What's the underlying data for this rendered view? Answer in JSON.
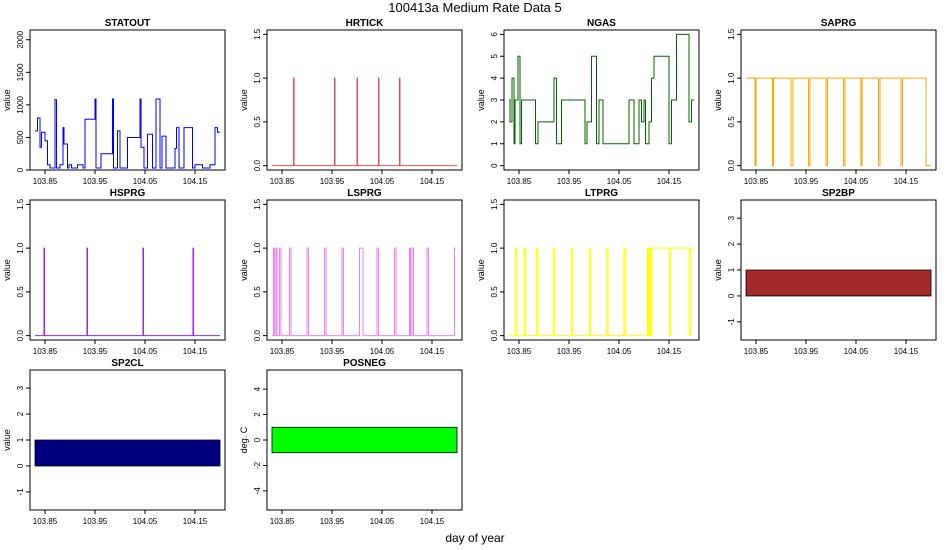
{
  "page": {
    "title": "100413a   Medium Rate Data 5",
    "xlabel": "day of year"
  },
  "chart_data": [
    {
      "type": "line",
      "title": "STATOUT",
      "ylabel": "value",
      "color": "#0000ff",
      "xlim": [
        103.82,
        104.21
      ],
      "ylim": [
        0,
        2150
      ],
      "xticks": [
        103.85,
        103.95,
        104.05,
        104.15
      ],
      "yticks": [
        0,
        500,
        1000,
        1500,
        2000
      ],
      "x": [
        103.83,
        103.835,
        103.835,
        103.84,
        103.84,
        103.843,
        103.843,
        103.85,
        103.85,
        103.855,
        103.855,
        103.86,
        103.86,
        103.87,
        103.87,
        103.873,
        103.873,
        103.88,
        103.88,
        103.886,
        103.886,
        103.888,
        103.888,
        103.895,
        103.895,
        103.898,
        103.898,
        103.903,
        103.903,
        103.915,
        103.915,
        103.926,
        103.926,
        103.93,
        103.93,
        103.95,
        103.95,
        103.952,
        103.952,
        103.962,
        103.962,
        103.985,
        103.985,
        103.987,
        103.987,
        103.995,
        103.995,
        104.0,
        104.0,
        104.015,
        104.015,
        104.04,
        104.04,
        104.042,
        104.042,
        104.048,
        104.048,
        104.055,
        104.055,
        104.065,
        104.065,
        104.072,
        104.072,
        104.08,
        104.08,
        104.084,
        104.084,
        104.092,
        104.092,
        104.11,
        104.11,
        104.113,
        104.113,
        104.118,
        104.118,
        104.128,
        104.128,
        104.145,
        104.145,
        104.15,
        104.15,
        104.165,
        104.165,
        104.18,
        104.18,
        104.19,
        104.19,
        104.195,
        104.195,
        104.2
      ],
      "y": [
        600,
        600,
        800,
        800,
        350,
        350,
        580,
        580,
        450,
        450,
        80,
        80,
        30,
        30,
        1080,
        1080,
        30,
        30,
        80,
        80,
        650,
        650,
        400,
        400,
        30,
        30,
        80,
        80,
        30,
        30,
        80,
        80,
        30,
        30,
        780,
        780,
        1090,
        1090,
        30,
        30,
        250,
        250,
        1090,
        1090,
        30,
        30,
        600,
        600,
        30,
        30,
        500,
        500,
        1090,
        1090,
        350,
        350,
        30,
        30,
        550,
        550,
        30,
        30,
        1090,
        1090,
        30,
        30,
        520,
        520,
        30,
        30,
        330,
        330,
        650,
        650,
        30,
        30,
        650,
        650,
        30,
        30,
        80,
        80,
        30,
        30,
        80,
        80,
        650,
        650,
        580,
        580
      ]
    },
    {
      "type": "line",
      "title": "HRTICK",
      "ylabel": "value",
      "color": "#e05050",
      "xlim": [
        103.82,
        104.21
      ],
      "ylim": [
        -0.05,
        1.55
      ],
      "xticks": [
        103.85,
        103.95,
        104.05,
        104.15
      ],
      "yticks": [
        0.0,
        0.5,
        1.0,
        1.5
      ],
      "x": [
        103.83,
        103.873,
        103.873,
        103.874,
        103.874,
        103.955,
        103.955,
        103.956,
        103.956,
        104.0,
        104.0,
        104.001,
        104.001,
        104.043,
        104.043,
        104.044,
        104.044,
        104.085,
        104.085,
        104.086,
        104.086,
        104.2
      ],
      "y": [
        0,
        0,
        1,
        1,
        0,
        0,
        1,
        1,
        0,
        0,
        1,
        1,
        0,
        0,
        1,
        1,
        0,
        0,
        1,
        1,
        0,
        0
      ]
    },
    {
      "type": "line",
      "title": "NGAS",
      "ylabel": "value",
      "color": "#006400",
      "xlim": [
        103.82,
        104.21
      ],
      "ylim": [
        -0.2,
        6.2
      ],
      "xticks": [
        103.85,
        103.95,
        104.05,
        104.15
      ],
      "yticks": [
        0,
        1,
        2,
        3,
        4,
        5,
        6
      ],
      "x": [
        103.83,
        103.832,
        103.832,
        103.836,
        103.836,
        103.84,
        103.84,
        103.842,
        103.842,
        103.848,
        103.848,
        103.852,
        103.852,
        103.855,
        103.855,
        103.883,
        103.883,
        103.888,
        103.888,
        103.92,
        103.92,
        103.925,
        103.925,
        103.935,
        103.935,
        103.982,
        103.982,
        103.986,
        103.986,
        103.995,
        103.995,
        104.005,
        104.005,
        104.01,
        104.01,
        104.018,
        104.018,
        104.025,
        104.025,
        104.07,
        104.07,
        104.08,
        104.08,
        104.09,
        104.09,
        104.095,
        104.095,
        104.1,
        104.1,
        104.103,
        104.103,
        104.11,
        104.11,
        104.115,
        104.115,
        104.12,
        104.12,
        104.15,
        104.15,
        104.155,
        104.155,
        104.165,
        104.165,
        104.19,
        104.19,
        104.195,
        104.195,
        104.2
      ],
      "y": [
        3,
        3,
        2,
        2,
        4,
        4,
        1,
        1,
        3,
        3,
        5,
        5,
        1,
        1,
        3,
        3,
        1,
        1,
        2,
        2,
        4,
        4,
        1,
        1,
        3,
        3,
        1,
        1,
        2,
        2,
        5,
        5,
        1,
        1,
        3,
        3,
        1,
        1,
        1,
        1,
        3,
        3,
        1,
        1,
        3,
        3,
        2,
        2,
        3,
        3,
        1,
        1,
        2,
        2,
        4,
        4,
        5,
        5,
        1,
        1,
        3,
        3,
        6,
        6,
        2,
        2,
        3,
        3
      ]
    },
    {
      "type": "line",
      "title": "SAPRG",
      "ylabel": "value",
      "color": "#ffa500",
      "xlim": [
        103.82,
        104.21
      ],
      "ylim": [
        -0.05,
        1.55
      ],
      "xticks": [
        103.85,
        103.95,
        104.05,
        104.15
      ],
      "yticks": [
        0.0,
        0.5,
        1.0,
        1.5
      ],
      "x": [
        103.83,
        103.848,
        103.848,
        103.85,
        103.85,
        103.855,
        103.855,
        103.883,
        103.883,
        103.885,
        103.885,
        103.92,
        103.92,
        103.924,
        103.924,
        103.955,
        103.955,
        103.958,
        103.958,
        103.99,
        103.99,
        103.993,
        103.993,
        104.025,
        104.025,
        104.028,
        104.028,
        104.06,
        104.06,
        104.062,
        104.062,
        104.095,
        104.095,
        104.098,
        104.098,
        104.14,
        104.14,
        104.143,
        104.143,
        104.19,
        104.19,
        104.2
      ],
      "y": [
        1,
        1,
        0,
        0,
        1,
        1,
        1,
        1,
        0,
        0,
        1,
        1,
        0,
        0,
        1,
        1,
        0,
        0,
        1,
        1,
        0,
        0,
        1,
        1,
        0,
        0,
        1,
        1,
        0,
        0,
        1,
        1,
        0,
        0,
        1,
        1,
        0,
        0,
        1,
        1,
        0,
        0
      ]
    },
    {
      "type": "line",
      "title": "HSPRG",
      "ylabel": "value",
      "color": "#a020f0",
      "xlim": [
        103.82,
        104.21
      ],
      "ylim": [
        -0.05,
        1.55
      ],
      "xticks": [
        103.85,
        103.95,
        104.05,
        104.15
      ],
      "yticks": [
        0.0,
        0.5,
        1.0,
        1.5
      ],
      "x": [
        103.83,
        103.848,
        103.848,
        103.849,
        103.849,
        103.934,
        103.934,
        103.935,
        103.935,
        104.046,
        104.046,
        104.047,
        104.047,
        104.146,
        104.146,
        104.147,
        104.147,
        104.2
      ],
      "y": [
        0,
        0,
        1,
        1,
        0,
        0,
        1,
        1,
        0,
        0,
        1,
        1,
        0,
        0,
        1,
        1,
        0,
        0
      ]
    },
    {
      "type": "line",
      "title": "LSPRG",
      "ylabel": "value",
      "color": "#ee82ee",
      "xlim": [
        103.82,
        104.21
      ],
      "ylim": [
        -0.05,
        1.55
      ],
      "xticks": [
        103.85,
        103.95,
        104.05,
        104.15
      ],
      "yticks": [
        0.0,
        0.5,
        1.0,
        1.5
      ],
      "x": [
        103.83,
        103.833,
        103.833,
        103.835,
        103.835,
        103.838,
        103.838,
        103.84,
        103.84,
        103.845,
        103.845,
        103.848,
        103.848,
        103.865,
        103.865,
        103.868,
        103.868,
        103.9,
        103.9,
        103.903,
        103.903,
        103.935,
        103.935,
        103.938,
        103.938,
        103.97,
        103.97,
        103.973,
        103.973,
        104.005,
        104.005,
        104.012,
        104.012,
        104.04,
        104.04,
        104.043,
        104.043,
        104.075,
        104.075,
        104.078,
        104.078,
        104.105,
        104.105,
        104.107,
        104.107,
        104.11,
        104.11,
        104.113,
        104.113,
        104.14,
        104.14,
        104.143,
        104.143,
        104.195,
        104.195,
        104.198
      ],
      "y": [
        0,
        0,
        1,
        1,
        0,
        0,
        1,
        1,
        0,
        0,
        1,
        1,
        0,
        0,
        1,
        1,
        0,
        0,
        1,
        1,
        0,
        0,
        1,
        1,
        0,
        0,
        1,
        1,
        0,
        0,
        1,
        1,
        0,
        0,
        1,
        1,
        0,
        0,
        1,
        1,
        0,
        0,
        1,
        1,
        0,
        0,
        1,
        1,
        0,
        0,
        1,
        1,
        0,
        0,
        1,
        1
      ]
    },
    {
      "type": "line",
      "title": "LTPRG",
      "ylabel": "value",
      "color": "#ffff00",
      "xlim": [
        103.82,
        104.21
      ],
      "ylim": [
        -0.05,
        1.55
      ],
      "xticks": [
        103.85,
        103.95,
        104.05,
        104.15
      ],
      "yticks": [
        0.0,
        0.5,
        1.0,
        1.5
      ],
      "x": [
        103.83,
        103.843,
        103.843,
        103.846,
        103.846,
        103.86,
        103.86,
        103.863,
        103.863,
        103.885,
        103.885,
        103.888,
        103.888,
        103.918,
        103.918,
        103.921,
        103.921,
        103.955,
        103.955,
        103.958,
        103.958,
        103.99,
        103.99,
        103.993,
        103.993,
        104.025,
        104.025,
        104.028,
        104.028,
        104.06,
        104.06,
        104.063,
        104.063,
        104.107,
        104.107,
        104.109,
        104.109,
        104.111,
        104.111,
        104.113,
        104.113,
        104.116,
        104.116,
        104.15,
        104.15,
        104.153,
        104.153,
        104.19,
        104.19,
        104.193,
        104.193,
        104.2
      ],
      "y": [
        0,
        0,
        1,
        1,
        0,
        0,
        1,
        1,
        0,
        0,
        1,
        1,
        0,
        0,
        1,
        1,
        0,
        0,
        1,
        1,
        0,
        0,
        1,
        1,
        0,
        0,
        1,
        1,
        0,
        0,
        1,
        1,
        0,
        0,
        1,
        1,
        0,
        0,
        1,
        1,
        0,
        0,
        1,
        1,
        0,
        0,
        1,
        1,
        0,
        0,
        1,
        1
      ]
    },
    {
      "type": "area",
      "title": "SP2BP",
      "ylabel": "value",
      "color": "#a52a2a",
      "xlim": [
        103.82,
        104.21
      ],
      "ylim": [
        -1.7,
        3.7
      ],
      "xticks": [
        103.85,
        103.95,
        104.05,
        104.15
      ],
      "yticks": [
        -1,
        0,
        1,
        2,
        3
      ],
      "x": [
        103.83,
        104.2
      ],
      "ymin": [
        0,
        0
      ],
      "ymax": [
        1,
        1
      ]
    },
    {
      "type": "area",
      "title": "SP2CL",
      "ylabel": "value",
      "color": "#000080",
      "xlim": [
        103.82,
        104.21
      ],
      "ylim": [
        -1.7,
        3.7
      ],
      "xticks": [
        103.85,
        103.95,
        104.05,
        104.15
      ],
      "yticks": [
        -1,
        0,
        1,
        2,
        3
      ],
      "x": [
        103.83,
        104.2
      ],
      "ymin": [
        0,
        0
      ],
      "ymax": [
        1,
        1
      ]
    },
    {
      "type": "area",
      "title": "POSNEG",
      "ylabel": "deg. C",
      "color": "#00ff00",
      "xlim": [
        103.82,
        104.21
      ],
      "ylim": [
        -5.5,
        5.5
      ],
      "xticks": [
        103.85,
        103.95,
        104.05,
        104.15
      ],
      "yticks": [
        -4,
        -2,
        0,
        2,
        4
      ],
      "x": [
        103.83,
        104.2
      ],
      "ymin": [
        -1,
        -1
      ],
      "ymax": [
        1,
        1
      ]
    }
  ]
}
